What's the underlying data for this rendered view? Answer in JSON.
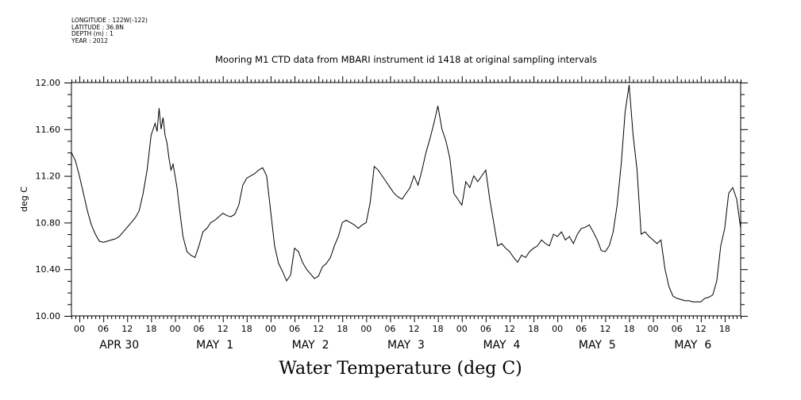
{
  "header": {
    "longitude": "LONGITUDE : 122W(-122)",
    "latitude": "LATITUDE : 36.8N",
    "depth": "DEPTH (m) : 1",
    "year": "YEAR : 2012"
  },
  "chart_data": {
    "type": "line",
    "title": "Mooring M1 CTD data from MBARI instrument id 1418 at original sampling intervals",
    "xlabel": "Water Temperature (deg C)",
    "ylabel": "deg C",
    "ylim": [
      10.0,
      12.0
    ],
    "yticks": [
      "10.00",
      "10.40",
      "10.80",
      "11.20",
      "11.60",
      "12.00"
    ],
    "x_unit": "hours since APR 30 00:00",
    "xlim": [
      -2,
      166
    ],
    "hour_ticks": [
      "00",
      "06",
      "12",
      "18",
      "00",
      "06",
      "12",
      "18",
      "00",
      "06",
      "12",
      "18",
      "00",
      "06",
      "12",
      "18",
      "00",
      "06",
      "12",
      "18",
      "00",
      "06",
      "12",
      "18",
      "00",
      "06",
      "12",
      "18"
    ],
    "day_labels": [
      "APR 30",
      "MAY  1",
      "MAY  2",
      "MAY  3",
      "MAY  4",
      "MAY  5",
      "MAY  6"
    ],
    "grid": false,
    "series": [
      {
        "x": [
          -2,
          -1,
          0,
          1,
          2,
          3,
          4,
          5,
          6,
          7,
          8,
          9,
          10,
          11,
          12,
          13,
          14,
          15,
          16,
          17,
          18,
          19,
          19.5,
          20,
          20.5,
          21,
          21.5,
          22,
          22.5,
          23,
          23.5,
          24,
          24.5,
          25,
          26,
          27,
          28,
          29,
          30,
          31,
          32,
          33,
          34,
          35,
          36,
          37,
          38,
          39,
          40,
          41,
          42,
          43,
          44,
          45,
          46,
          47,
          48,
          49,
          50,
          51,
          52,
          53,
          54,
          55,
          56,
          57,
          58,
          59,
          60,
          61,
          62,
          63,
          64,
          65,
          66,
          67,
          68,
          69,
          70,
          71,
          72,
          73,
          74,
          75,
          76,
          77,
          78,
          79,
          80,
          81,
          82,
          83,
          84,
          85,
          86,
          87,
          88,
          89,
          90,
          91,
          92,
          93,
          94,
          95,
          96,
          97,
          98,
          99,
          100,
          101,
          102,
          103,
          104,
          105,
          106,
          107,
          108,
          109,
          110,
          111,
          112,
          113,
          114,
          115,
          116,
          117,
          118,
          119,
          120,
          121,
          122,
          123,
          124,
          125,
          126,
          127,
          128,
          129,
          130,
          131,
          132,
          133,
          134,
          135,
          136,
          137,
          138,
          139,
          140,
          141,
          142,
          143,
          144,
          145,
          146,
          147,
          148,
          149,
          150,
          151,
          152,
          153,
          154,
          155,
          156,
          157,
          158,
          159,
          160,
          161,
          162,
          163,
          164,
          165,
          166
        ],
        "values": [
          11.4,
          11.33,
          11.2,
          11.05,
          10.9,
          10.78,
          10.7,
          10.64,
          10.63,
          10.64,
          10.65,
          10.66,
          10.68,
          10.72,
          10.76,
          10.8,
          10.84,
          10.9,
          11.05,
          11.25,
          11.55,
          11.65,
          11.58,
          11.78,
          11.6,
          11.7,
          11.55,
          11.48,
          11.35,
          11.25,
          11.3,
          11.2,
          11.1,
          10.95,
          10.68,
          10.55,
          10.52,
          10.5,
          10.6,
          10.72,
          10.75,
          10.8,
          10.82,
          10.85,
          10.88,
          10.86,
          10.85,
          10.87,
          10.95,
          11.12,
          11.18,
          11.2,
          11.22,
          11.25,
          11.27,
          11.2,
          10.9,
          10.6,
          10.45,
          10.38,
          10.3,
          10.35,
          10.58,
          10.55,
          10.46,
          10.4,
          10.36,
          10.32,
          10.34,
          10.42,
          10.45,
          10.5,
          10.6,
          10.68,
          10.8,
          10.82,
          10.8,
          10.78,
          10.75,
          10.78,
          10.8,
          10.97,
          11.28,
          11.25,
          11.2,
          11.15,
          11.1,
          11.05,
          11.02,
          11.0,
          11.05,
          11.1,
          11.2,
          11.12,
          11.25,
          11.4,
          11.52,
          11.65,
          11.8,
          11.6,
          11.5,
          11.35,
          11.05,
          11.0,
          10.95,
          11.15,
          11.1,
          11.2,
          11.15,
          11.2,
          11.25,
          11.0,
          10.8,
          10.6,
          10.62,
          10.58,
          10.55,
          10.5,
          10.46,
          10.52,
          10.5,
          10.55,
          10.58,
          10.6,
          10.65,
          10.62,
          10.6,
          10.7,
          10.68,
          10.72,
          10.65,
          10.68,
          10.62,
          10.7,
          10.75,
          10.76,
          10.78,
          10.72,
          10.65,
          10.56,
          10.55,
          10.6,
          10.72,
          10.95,
          11.3,
          11.75,
          11.98,
          11.55,
          11.25,
          10.7,
          10.72,
          10.68,
          10.65,
          10.62,
          10.65,
          10.4,
          10.25,
          10.17,
          10.15,
          10.14,
          10.13,
          10.13,
          10.12,
          10.12,
          10.12,
          10.15,
          10.16,
          10.18,
          10.3,
          10.6,
          10.75,
          11.05,
          11.1,
          11.0,
          10.75
        ]
      }
    ]
  }
}
